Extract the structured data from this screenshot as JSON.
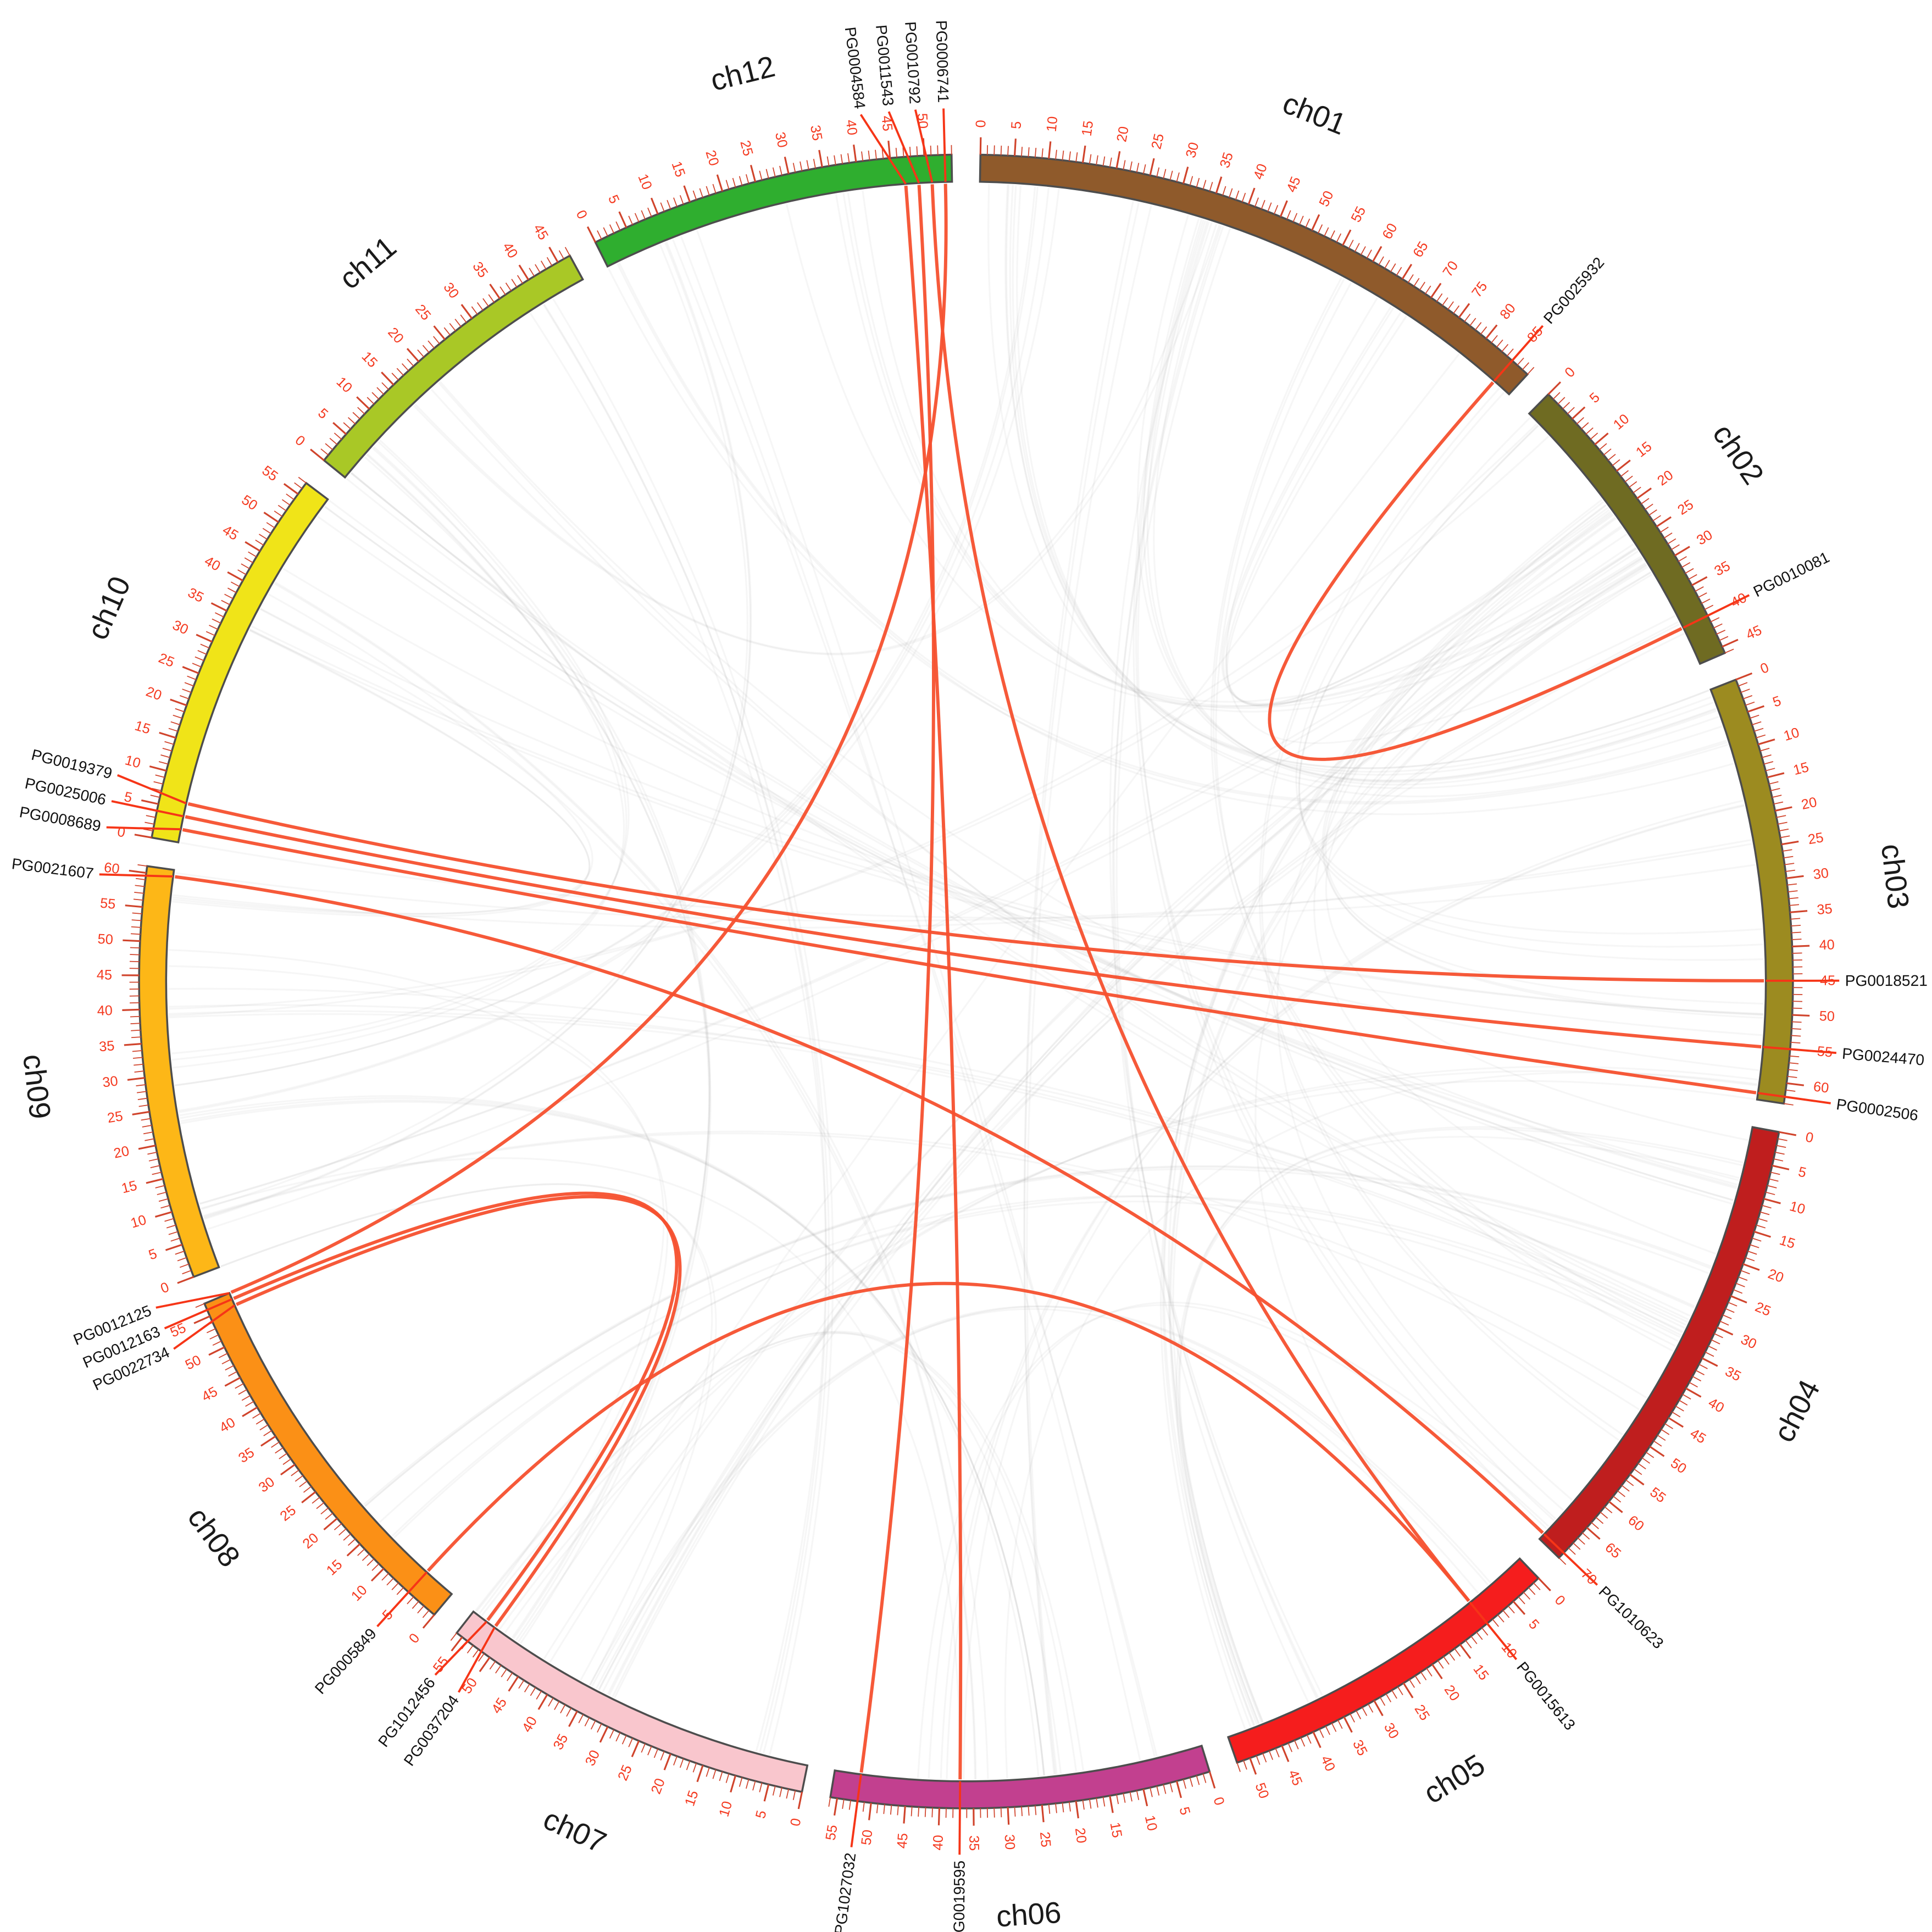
{
  "figure": {
    "kind": "circos synteny plot",
    "description": "Circular plot of 12 chromosomes with tick scales, labelled genes and duplication links"
  },
  "chart_data": {
    "type": "circos",
    "unit": "Mb",
    "axis": {
      "tick_minor": 1,
      "tick_major": 5,
      "tick_label_every": 5
    },
    "chromosomes": [
      {
        "name": "ch01",
        "length": 88,
        "color": "#8f5a2b"
      },
      {
        "name": "ch02",
        "length": 46,
        "color": "#6f6b22"
      },
      {
        "name": "ch03",
        "length": 63,
        "color": "#9c8b20"
      },
      {
        "name": "ch04",
        "length": 71,
        "color": "#bf1e1e"
      },
      {
        "name": "ch05",
        "length": 52,
        "color": "#f51d1d"
      },
      {
        "name": "ch06",
        "length": 56,
        "color": "#c2408f"
      },
      {
        "name": "ch07",
        "length": 56,
        "color": "#f9c6cd"
      },
      {
        "name": "ch08",
        "length": 57,
        "color": "#fb9016"
      },
      {
        "name": "ch09",
        "length": 61,
        "color": "#fdb717"
      },
      {
        "name": "ch10",
        "length": 57,
        "color": "#f0e418"
      },
      {
        "name": "ch11",
        "length": 47,
        "color": "#a9c826"
      },
      {
        "name": "ch12",
        "length": 54,
        "color": "#2fae2f"
      }
    ],
    "genes": [
      {
        "name": "PG0025932",
        "chr": "ch01",
        "pos": 85,
        "label_offset": 0
      },
      {
        "name": "PG0010081",
        "chr": "ch02",
        "pos": 40,
        "label_offset": 0
      },
      {
        "name": "PG0018521",
        "chr": "ch03",
        "pos": 45,
        "label_offset": 0
      },
      {
        "name": "PG0024470",
        "chr": "ch03",
        "pos": 55,
        "label_offset": 0
      },
      {
        "name": "PG0002506",
        "chr": "ch03",
        "pos": 62,
        "label_offset": 0
      },
      {
        "name": "PG1010623",
        "chr": "ch04",
        "pos": 70,
        "label_offset": 0
      },
      {
        "name": "PG0015613",
        "chr": "ch05",
        "pos": 10,
        "label_offset": 0
      },
      {
        "name": "PG0019595",
        "chr": "ch06",
        "pos": 37,
        "label_offset": 0
      },
      {
        "name": "PG1027032",
        "chr": "ch06",
        "pos": 52,
        "label_offset": 0
      },
      {
        "name": "PG0037204",
        "chr": "ch07",
        "pos": 52,
        "label_offset": -0.6
      },
      {
        "name": "PG1012456",
        "chr": "ch07",
        "pos": 53.5,
        "label_offset": 0.6
      },
      {
        "name": "PG0005849",
        "chr": "ch08",
        "pos": 5,
        "label_offset": 0
      },
      {
        "name": "PG0022734",
        "chr": "ch08",
        "pos": 55,
        "label_offset": -1.0
      },
      {
        "name": "PG0012163",
        "chr": "ch08",
        "pos": 56,
        "label_offset": 0
      },
      {
        "name": "PG0012125",
        "chr": "ch08",
        "pos": 57,
        "label_offset": 1.0
      },
      {
        "name": "PG0021607",
        "chr": "ch09",
        "pos": 60,
        "label_offset": -0.5
      },
      {
        "name": "PG0008689",
        "chr": "ch10",
        "pos": 2,
        "label_offset": -0.8
      },
      {
        "name": "PG0025006",
        "chr": "ch10",
        "pos": 4,
        "label_offset": 0
      },
      {
        "name": "PG0019379",
        "chr": "ch10",
        "pos": 6,
        "label_offset": 0.8
      },
      {
        "name": "PG0004584",
        "chr": "ch12",
        "pos": 47,
        "label_offset": -2.6
      },
      {
        "name": "PG0011543",
        "chr": "ch12",
        "pos": 49,
        "label_offset": -1.7
      },
      {
        "name": "PG0010792",
        "chr": "ch12",
        "pos": 51,
        "label_offset": -0.9
      },
      {
        "name": "PG0006741",
        "chr": "ch12",
        "pos": 53,
        "label_offset": 0
      }
    ],
    "highlight_links": [
      {
        "from": "PG0025932",
        "to": "PG0010081"
      },
      {
        "from": "PG0004584",
        "to": "PG0019595"
      },
      {
        "from": "PG0011543",
        "to": "PG1027032"
      },
      {
        "from": "PG0010792",
        "to": "PG0015613"
      },
      {
        "from": "PG0006741",
        "to": "PG0012125"
      },
      {
        "from": "PG0019379",
        "to": "PG0018521"
      },
      {
        "from": "PG0025006",
        "to": "PG0024470"
      },
      {
        "from": "PG0008689",
        "to": "PG0002506"
      },
      {
        "from": "PG0021607",
        "to": "PG1010623"
      },
      {
        "from": "PG0022734",
        "to": "PG0037204"
      },
      {
        "from": "PG0012163",
        "to": "PG1012456"
      },
      {
        "from": "PG0005849",
        "to": "PG0015613"
      }
    ],
    "background_links": {
      "bundles": 60,
      "max_strands": 4,
      "seed": 11,
      "color": "#8a8a8a",
      "opacity": 0.08
    },
    "colors": {
      "tick": "#d0442c",
      "tick_label": "#f4391f",
      "gene_line": "#f63517",
      "highlight_link": "#f6502e",
      "segment_outline": "#4d4d4d",
      "gene_label": "#111111",
      "chromosome_label": "#1a1a1a",
      "background": "#ffffff"
    },
    "layout": {
      "gap_deg": 2,
      "direction": "clockwise",
      "start": "top",
      "grid": false,
      "legend": "none"
    }
  }
}
